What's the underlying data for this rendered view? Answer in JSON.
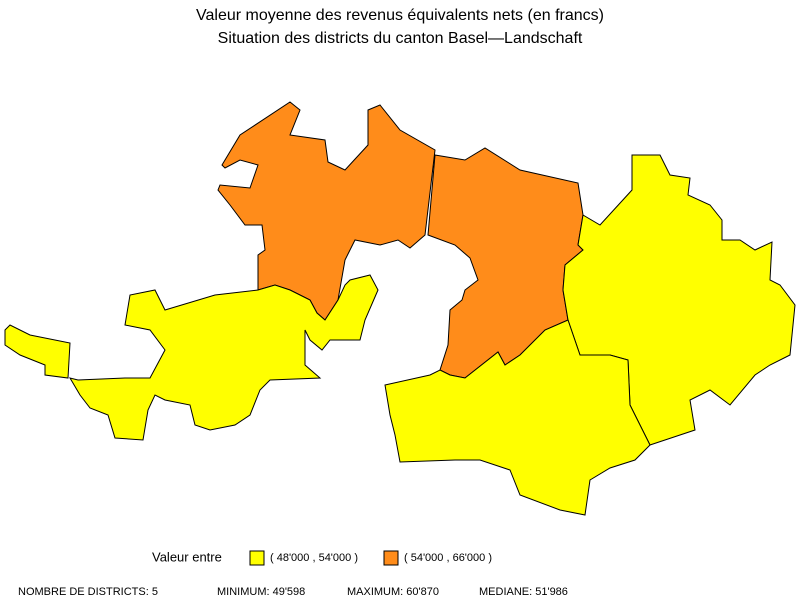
{
  "title": [
    "Valeur moyenne des revenus équivalents nets (en francs)",
    "Situation des districts du canton Basel—Landschaft"
  ],
  "legend": {
    "label": "Valeur entre",
    "classes": [
      {
        "label": "( 48'000 , 54'000 )",
        "color": "#ffff00"
      },
      {
        "label": "( 54'000 , 66'000 )",
        "color": "#ff8c1a"
      }
    ]
  },
  "footer": [
    "NOMBRE DE DISTRICTS: 5",
    "MINIMUM: 49'598",
    "MAXIMUM: 60'870",
    "MEDIANE: 51'986"
  ]
}
